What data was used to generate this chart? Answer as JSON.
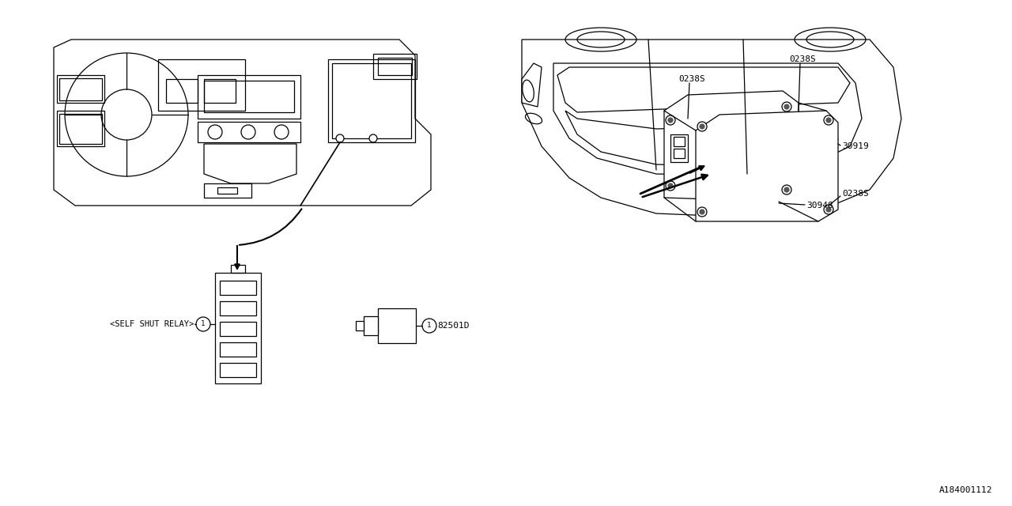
{
  "bg_color": "#ffffff",
  "line_color": "#000000",
  "fig_width": 12.8,
  "fig_height": 6.4,
  "dpi": 100,
  "diagram_id": "A184001112",
  "label_self_shut": "<SELF SHUT RELAY>",
  "label_part1": "82501D",
  "label_part2": "30948",
  "label_part3a": "0238S",
  "label_part3b": "0238S",
  "label_part3c": "0238S",
  "label_part4": "30919"
}
